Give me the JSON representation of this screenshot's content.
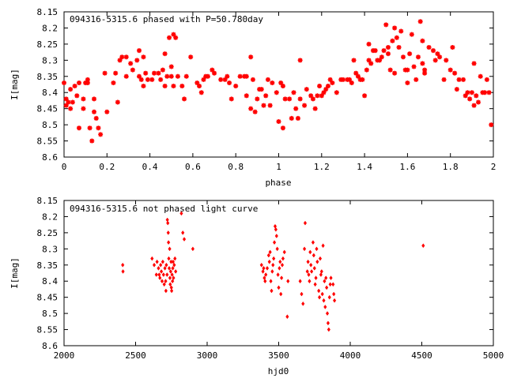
{
  "chart_data": [
    {
      "type": "scatter",
      "title": "094316-5315.6 phased with P=50.780day",
      "xlabel": "phase",
      "ylabel": "I[mag]",
      "xlim": [
        0,
        2
      ],
      "ylim": [
        8.15,
        8.6
      ],
      "y_inverted": true,
      "xticks": [
        0,
        0.2,
        0.4,
        0.6,
        0.8,
        1,
        1.2,
        1.4,
        1.6,
        1.8,
        2
      ],
      "xtick_labels": [
        "0",
        "0.2",
        "0.4",
        "0.6",
        "0.8",
        "1",
        "1.2",
        "1.4",
        "1.6",
        "1.8",
        "2"
      ],
      "yticks": [
        8.15,
        8.2,
        8.25,
        8.3,
        8.35,
        8.4,
        8.45,
        8.5,
        8.55,
        8.6
      ],
      "ytick_labels": [
        "8.15",
        "8.2",
        "8.25",
        "8.3",
        "8.35",
        "8.4",
        "8.45",
        "8.5",
        "8.55",
        "8.6"
      ],
      "grid": false,
      "marker_color": "#ff0000",
      "marker": "star",
      "points": [
        [
          0.0,
          8.37
        ],
        [
          0.01,
          8.42
        ],
        [
          0.01,
          8.44
        ],
        [
          0.02,
          8.43
        ],
        [
          0.03,
          8.45
        ],
        [
          0.03,
          8.39
        ],
        [
          0.04,
          8.43
        ],
        [
          0.05,
          8.38
        ],
        [
          0.06,
          8.41
        ],
        [
          0.07,
          8.37
        ],
        [
          0.07,
          8.51
        ],
        [
          0.09,
          8.42
        ],
        [
          0.09,
          8.45
        ],
        [
          0.1,
          8.37
        ],
        [
          0.11,
          8.36
        ],
        [
          0.11,
          8.37
        ],
        [
          0.12,
          8.51
        ],
        [
          0.13,
          8.55
        ],
        [
          0.14,
          8.42
        ],
        [
          0.14,
          8.46
        ],
        [
          0.15,
          8.48
        ],
        [
          0.16,
          8.51
        ],
        [
          0.17,
          8.53
        ],
        [
          0.19,
          8.34
        ],
        [
          0.2,
          8.46
        ],
        [
          0.23,
          8.37
        ],
        [
          0.24,
          8.34
        ],
        [
          0.25,
          8.43
        ],
        [
          0.26,
          8.3
        ],
        [
          0.27,
          8.29
        ],
        [
          0.29,
          8.29
        ],
        [
          0.29,
          8.35
        ],
        [
          0.31,
          8.31
        ],
        [
          0.32,
          8.33
        ],
        [
          0.34,
          8.3
        ],
        [
          0.35,
          8.27
        ],
        [
          0.35,
          8.35
        ],
        [
          0.36,
          8.36
        ],
        [
          0.37,
          8.29
        ],
        [
          0.37,
          8.38
        ],
        [
          0.38,
          8.34
        ],
        [
          0.39,
          8.36
        ],
        [
          0.41,
          8.36
        ],
        [
          0.42,
          8.34
        ],
        [
          0.44,
          8.34
        ],
        [
          0.45,
          8.36
        ],
        [
          0.46,
          8.33
        ],
        [
          0.47,
          8.28
        ],
        [
          0.47,
          8.38
        ],
        [
          0.48,
          8.35
        ],
        [
          0.49,
          8.23
        ],
        [
          0.5,
          8.32
        ],
        [
          0.5,
          8.35
        ],
        [
          0.51,
          8.38
        ],
        [
          0.51,
          8.22
        ],
        [
          0.52,
          8.23
        ],
        [
          0.53,
          8.35
        ],
        [
          0.55,
          8.38
        ],
        [
          0.56,
          8.42
        ],
        [
          0.57,
          8.35
        ],
        [
          0.59,
          8.29
        ],
        [
          0.62,
          8.37
        ],
        [
          0.63,
          8.38
        ],
        [
          0.64,
          8.4
        ],
        [
          0.65,
          8.36
        ],
        [
          0.66,
          8.35
        ],
        [
          0.67,
          8.35
        ],
        [
          0.69,
          8.33
        ],
        [
          0.7,
          8.34
        ],
        [
          0.73,
          8.36
        ],
        [
          0.75,
          8.36
        ],
        [
          0.76,
          8.35
        ],
        [
          0.77,
          8.37
        ],
        [
          0.78,
          8.42
        ],
        [
          0.8,
          8.38
        ],
        [
          0.82,
          8.35
        ],
        [
          0.84,
          8.35
        ],
        [
          0.85,
          8.41
        ],
        [
          0.85,
          8.35
        ],
        [
          0.87,
          8.29
        ],
        [
          0.87,
          8.45
        ],
        [
          0.88,
          8.36
        ],
        [
          0.89,
          8.46
        ],
        [
          0.9,
          8.42
        ],
        [
          0.91,
          8.39
        ],
        [
          0.92,
          8.39
        ],
        [
          0.93,
          8.44
        ],
        [
          0.94,
          8.41
        ],
        [
          0.95,
          8.36
        ],
        [
          0.96,
          8.44
        ],
        [
          0.97,
          8.37
        ],
        [
          0.99,
          8.4
        ],
        [
          1.0,
          8.49
        ],
        [
          1.01,
          8.37
        ],
        [
          1.02,
          8.51
        ],
        [
          1.02,
          8.38
        ],
        [
          1.03,
          8.42
        ],
        [
          1.05,
          8.42
        ],
        [
          1.06,
          8.48
        ],
        [
          1.07,
          8.4
        ],
        [
          1.08,
          8.45
        ],
        [
          1.09,
          8.48
        ],
        [
          1.1,
          8.42
        ],
        [
          1.1,
          8.3
        ],
        [
          1.12,
          8.44
        ],
        [
          1.13,
          8.39
        ],
        [
          1.15,
          8.41
        ],
        [
          1.16,
          8.42
        ],
        [
          1.17,
          8.45
        ],
        [
          1.18,
          8.41
        ],
        [
          1.19,
          8.38
        ],
        [
          1.2,
          8.41
        ],
        [
          1.21,
          8.4
        ],
        [
          1.22,
          8.39
        ],
        [
          1.23,
          8.38
        ],
        [
          1.24,
          8.36
        ],
        [
          1.25,
          8.37
        ],
        [
          1.27,
          8.4
        ],
        [
          1.29,
          8.36
        ],
        [
          1.3,
          8.36
        ],
        [
          1.32,
          8.36
        ],
        [
          1.33,
          8.36
        ],
        [
          1.34,
          8.37
        ],
        [
          1.35,
          8.3
        ],
        [
          1.36,
          8.34
        ],
        [
          1.37,
          8.35
        ],
        [
          1.38,
          8.36
        ],
        [
          1.39,
          8.36
        ],
        [
          1.4,
          8.41
        ],
        [
          1.41,
          8.33
        ],
        [
          1.42,
          8.3
        ],
        [
          1.42,
          8.25
        ],
        [
          1.43,
          8.31
        ],
        [
          1.44,
          8.27
        ],
        [
          1.45,
          8.27
        ],
        [
          1.46,
          8.3
        ],
        [
          1.47,
          8.3
        ],
        [
          1.48,
          8.29
        ],
        [
          1.49,
          8.27
        ],
        [
          1.5,
          8.19
        ],
        [
          1.51,
          8.28
        ],
        [
          1.51,
          8.26
        ],
        [
          1.52,
          8.33
        ],
        [
          1.53,
          8.24
        ],
        [
          1.54,
          8.34
        ],
        [
          1.54,
          8.2
        ],
        [
          1.55,
          8.23
        ],
        [
          1.56,
          8.26
        ],
        [
          1.57,
          8.21
        ],
        [
          1.58,
          8.29
        ],
        [
          1.59,
          8.33
        ],
        [
          1.6,
          8.33
        ],
        [
          1.6,
          8.37
        ],
        [
          1.61,
          8.28
        ],
        [
          1.62,
          8.22
        ],
        [
          1.63,
          8.32
        ],
        [
          1.64,
          8.36
        ],
        [
          1.65,
          8.29
        ],
        [
          1.66,
          8.18
        ],
        [
          1.67,
          8.24
        ],
        [
          1.67,
          8.31
        ],
        [
          1.68,
          8.33
        ],
        [
          1.68,
          8.34
        ],
        [
          1.7,
          8.26
        ],
        [
          1.72,
          8.27
        ],
        [
          1.73,
          8.3
        ],
        [
          1.74,
          8.28
        ],
        [
          1.75,
          8.29
        ],
        [
          1.77,
          8.36
        ],
        [
          1.78,
          8.3
        ],
        [
          1.8,
          8.33
        ],
        [
          1.81,
          8.26
        ],
        [
          1.82,
          8.34
        ],
        [
          1.83,
          8.39
        ],
        [
          1.84,
          8.36
        ],
        [
          1.86,
          8.36
        ],
        [
          1.87,
          8.41
        ],
        [
          1.88,
          8.4
        ],
        [
          1.89,
          8.42
        ],
        [
          1.9,
          8.4
        ],
        [
          1.91,
          8.44
        ],
        [
          1.91,
          8.31
        ],
        [
          1.92,
          8.41
        ],
        [
          1.93,
          8.43
        ],
        [
          1.94,
          8.35
        ],
        [
          1.95,
          8.4
        ],
        [
          1.96,
          8.4
        ],
        [
          1.97,
          8.36
        ],
        [
          1.98,
          8.4
        ],
        [
          1.99,
          8.5
        ]
      ]
    },
    {
      "type": "scatter",
      "title": "094316-5315.6 not phased light curve",
      "xlabel": "hjd0",
      "ylabel": "I[mag]",
      "xlim": [
        2000,
        5000
      ],
      "ylim": [
        8.15,
        8.6
      ],
      "y_inverted": true,
      "xticks": [
        2000,
        2500,
        3000,
        3500,
        4000,
        4500,
        5000
      ],
      "xtick_labels": [
        "2000",
        "2500",
        "3000",
        "3500",
        "4000",
        "4500",
        "5000"
      ],
      "yticks": [
        8.15,
        8.2,
        8.25,
        8.3,
        8.35,
        8.4,
        8.45,
        8.5,
        8.55,
        8.6
      ],
      "ytick_labels": [
        "8.15",
        "8.2",
        "8.25",
        "8.3",
        "8.35",
        "8.4",
        "8.45",
        "8.5",
        "8.55",
        "8.6"
      ],
      "grid": false,
      "marker_color": "#ff0000",
      "marker": "diamond",
      "points": [
        [
          2410,
          8.35
        ],
        [
          2412,
          8.37
        ],
        [
          2615,
          8.33
        ],
        [
          2630,
          8.35
        ],
        [
          2645,
          8.38
        ],
        [
          2650,
          8.34
        ],
        [
          2660,
          8.36
        ],
        [
          2665,
          8.38
        ],
        [
          2670,
          8.39
        ],
        [
          2675,
          8.35
        ],
        [
          2680,
          8.37
        ],
        [
          2685,
          8.4
        ],
        [
          2690,
          8.34
        ],
        [
          2695,
          8.38
        ],
        [
          2700,
          8.41
        ],
        [
          2705,
          8.36
        ],
        [
          2710,
          8.4
        ],
        [
          2712,
          8.43
        ],
        [
          2715,
          8.35
        ],
        [
          2720,
          8.38
        ],
        [
          2722,
          8.21
        ],
        [
          2725,
          8.22
        ],
        [
          2728,
          8.25
        ],
        [
          2730,
          8.28
        ],
        [
          2732,
          8.33
        ],
        [
          2735,
          8.36
        ],
        [
          2738,
          8.3
        ],
        [
          2740,
          8.39
        ],
        [
          2742,
          8.41
        ],
        [
          2745,
          8.37
        ],
        [
          2748,
          8.34
        ],
        [
          2750,
          8.42
        ],
        [
          2752,
          8.43
        ],
        [
          2755,
          8.38
        ],
        [
          2758,
          8.4
        ],
        [
          2760,
          8.36
        ],
        [
          2762,
          8.34
        ],
        [
          2765,
          8.39
        ],
        [
          2770,
          8.35
        ],
        [
          2775,
          8.33
        ],
        [
          2780,
          8.37
        ],
        [
          2820,
          8.19
        ],
        [
          2830,
          8.25
        ],
        [
          2840,
          8.27
        ],
        [
          2900,
          8.3
        ],
        [
          3380,
          8.35
        ],
        [
          3390,
          8.37
        ],
        [
          3395,
          8.36
        ],
        [
          3400,
          8.39
        ],
        [
          3405,
          8.4
        ],
        [
          3410,
          8.38
        ],
        [
          3420,
          8.36
        ],
        [
          3430,
          8.32
        ],
        [
          3435,
          8.34
        ],
        [
          3440,
          8.31
        ],
        [
          3445,
          8.4
        ],
        [
          3450,
          8.43
        ],
        [
          3455,
          8.37
        ],
        [
          3460,
          8.35
        ],
        [
          3465,
          8.33
        ],
        [
          3470,
          8.28
        ],
        [
          3475,
          8.23
        ],
        [
          3480,
          8.24
        ],
        [
          3485,
          8.26
        ],
        [
          3490,
          8.3
        ],
        [
          3495,
          8.38
        ],
        [
          3500,
          8.42
        ],
        [
          3505,
          8.36
        ],
        [
          3510,
          8.34
        ],
        [
          3515,
          8.44
        ],
        [
          3520,
          8.39
        ],
        [
          3525,
          8.35
        ],
        [
          3530,
          8.33
        ],
        [
          3540,
          8.31
        ],
        [
          3560,
          8.51
        ],
        [
          3565,
          8.4
        ],
        [
          3650,
          8.4
        ],
        [
          3660,
          8.44
        ],
        [
          3670,
          8.47
        ],
        [
          3680,
          8.3
        ],
        [
          3685,
          8.22
        ],
        [
          3700,
          8.37
        ],
        [
          3705,
          8.34
        ],
        [
          3710,
          8.38
        ],
        [
          3715,
          8.4
        ],
        [
          3720,
          8.31
        ],
        [
          3725,
          8.35
        ],
        [
          3730,
          8.37
        ],
        [
          3740,
          8.28
        ],
        [
          3745,
          8.32
        ],
        [
          3750,
          8.36
        ],
        [
          3755,
          8.41
        ],
        [
          3760,
          8.39
        ],
        [
          3765,
          8.3
        ],
        [
          3770,
          8.34
        ],
        [
          3780,
          8.43
        ],
        [
          3785,
          8.45
        ],
        [
          3790,
          8.33
        ],
        [
          3795,
          8.38
        ],
        [
          3800,
          8.37
        ],
        [
          3805,
          8.44
        ],
        [
          3810,
          8.29
        ],
        [
          3815,
          8.46
        ],
        [
          3820,
          8.4
        ],
        [
          3825,
          8.48
        ],
        [
          3830,
          8.39
        ],
        [
          3835,
          8.42
        ],
        [
          3840,
          8.5
        ],
        [
          3845,
          8.53
        ],
        [
          3850,
          8.55
        ],
        [
          3855,
          8.45
        ],
        [
          3860,
          8.41
        ],
        [
          3865,
          8.39
        ],
        [
          3880,
          8.41
        ],
        [
          3885,
          8.44
        ],
        [
          3890,
          8.46
        ],
        [
          4510,
          8.29
        ]
      ]
    }
  ]
}
